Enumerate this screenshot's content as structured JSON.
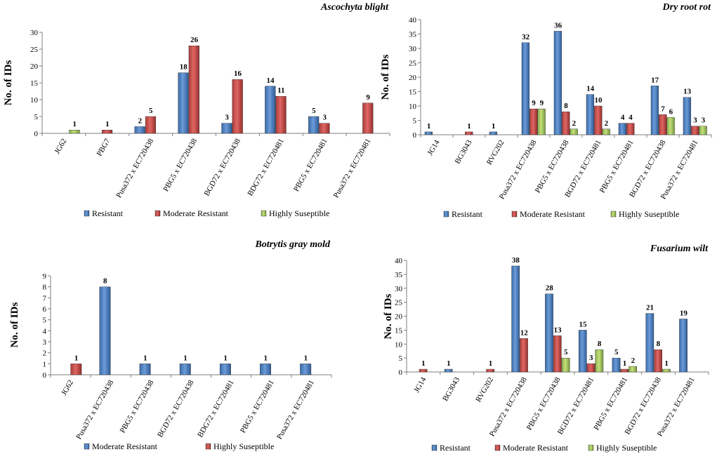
{
  "chart_data": [
    {
      "type": "bar",
      "title": "Ascochyta blight",
      "ylabel": "No. of IDs",
      "xlabel": "",
      "ylim": [
        0,
        30
      ],
      "yticks": [
        0,
        5,
        10,
        15,
        20,
        25,
        30
      ],
      "categories": [
        "JG62",
        "PBG7",
        "Pusa372 x EC720438",
        "PBG5 x EC720438",
        "BGD72 x EC720438",
        "BDG72 x EC720481",
        "PBG5 x EC720481",
        "Pusa372 x EC720481"
      ],
      "series": [
        {
          "name": "Resistant",
          "color": "#4a7ebb",
          "values": [
            null,
            null,
            2,
            18,
            3,
            14,
            5,
            null
          ]
        },
        {
          "name": "Moderate Resistant",
          "color": "#c0504d",
          "values": [
            null,
            1,
            5,
            26,
            16,
            11,
            3,
            9
          ]
        },
        {
          "name": "Highly Suseptible",
          "color": "#9bbb59",
          "values": [
            1,
            null,
            null,
            null,
            null,
            null,
            null,
            null
          ]
        }
      ],
      "legend": "bottom"
    },
    {
      "type": "bar",
      "title": "Dry root rot",
      "ylabel": "No. of IDs",
      "xlabel": "",
      "ylim": [
        0,
        40
      ],
      "yticks": [
        0,
        5,
        10,
        15,
        20,
        25,
        30,
        35,
        40
      ],
      "categories": [
        "JG14",
        "BG3043",
        "RVG202",
        "Pusa372 x EC720438",
        "PBG5 x EC720438",
        "BGD72 x EC720481",
        "PBG5 x EC720481",
        "BGD72 x EC720438",
        "Pusa372 x EC720481"
      ],
      "series": [
        {
          "name": "Resistant",
          "color": "#4a7ebb",
          "values": [
            1,
            null,
            1,
            32,
            36,
            14,
            4,
            17,
            13
          ]
        },
        {
          "name": "Moderate Resistant",
          "color": "#c0504d",
          "values": [
            null,
            1,
            null,
            9,
            8,
            10,
            4,
            7,
            3
          ]
        },
        {
          "name": "Highly Suseptible",
          "color": "#9bbb59",
          "values": [
            null,
            null,
            null,
            9,
            2,
            2,
            null,
            6,
            3
          ]
        }
      ],
      "legend": "bottom"
    },
    {
      "type": "bar",
      "title": "Botrytis gray mold",
      "ylabel": "No. of IDs",
      "xlabel": "",
      "ylim": [
        0,
        9
      ],
      "yticks": [
        0,
        1,
        2,
        3,
        4,
        5,
        6,
        7,
        8,
        9
      ],
      "categories": [
        "JG62",
        "Pusa372 x EC720438",
        "PBG5 x EC720438",
        "BGD72 x EC720438",
        "BDG72 x EC720481",
        "PBG5 x EC720481",
        "Pusa372 x EC720481"
      ],
      "series": [
        {
          "name": "Moderate Resistant",
          "color": "#4a7ebb",
          "values": [
            null,
            8,
            1,
            1,
            1,
            1,
            1
          ]
        },
        {
          "name": "Highly Suseptible",
          "color": "#c0504d",
          "values": [
            1,
            null,
            null,
            null,
            null,
            null,
            null
          ]
        }
      ],
      "legend": "bottom"
    },
    {
      "type": "bar",
      "title": "Fusarium wilt",
      "ylabel": "No. of IDs",
      "xlabel": "",
      "ylim": [
        0,
        40
      ],
      "yticks": [
        0,
        5,
        10,
        15,
        20,
        25,
        30,
        35,
        40
      ],
      "categories": [
        "JG14",
        "BG3043",
        "RVG202",
        "Pusa372 x EC720438",
        "PBG5 x EC720438",
        "BGD72 x EC720481",
        "PBG5 x EC720481",
        "BGD72 x EC720438",
        "Pusa372 x EC720481"
      ],
      "series": [
        {
          "name": "Resistant",
          "color": "#4a7ebb",
          "values": [
            null,
            1,
            null,
            38,
            28,
            15,
            5,
            21,
            19
          ]
        },
        {
          "name": "Moderate Resistant",
          "color": "#c0504d",
          "values": [
            1,
            null,
            1,
            12,
            13,
            3,
            1,
            8,
            null
          ]
        },
        {
          "name": "Highly Suseptible",
          "color": "#9bbb59",
          "values": [
            null,
            null,
            null,
            null,
            5,
            8,
            2,
            1,
            null
          ]
        }
      ],
      "legend": "bottom"
    }
  ]
}
